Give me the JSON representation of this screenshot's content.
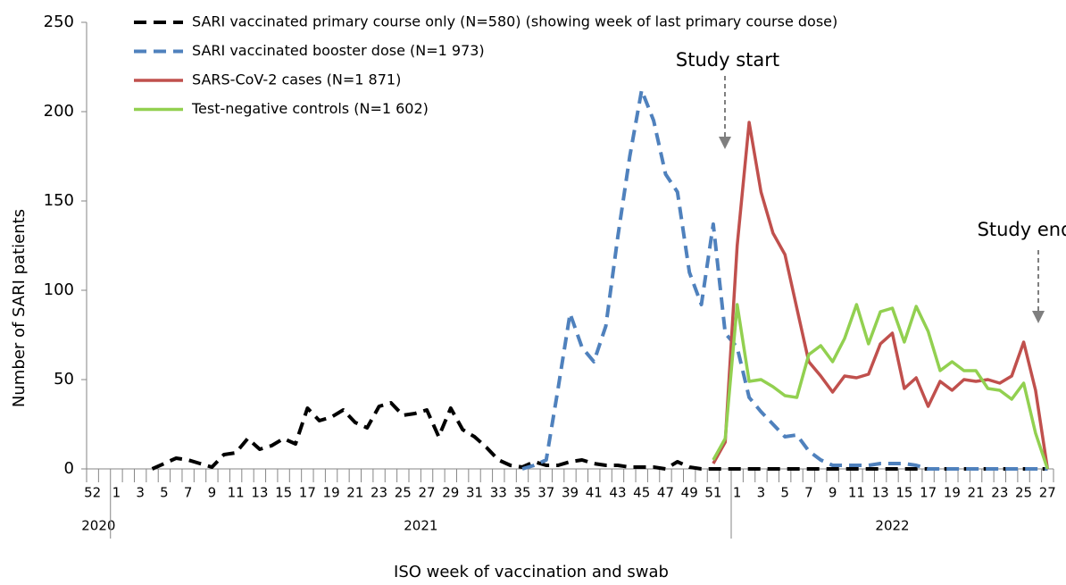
{
  "chart_data": {
    "type": "line",
    "y_label": "Number of SARI patients",
    "x_label": "ISO week of vaccination and swab",
    "categories": [
      "52",
      null,
      "1",
      null,
      "3",
      null,
      "5",
      null,
      "7",
      null,
      "9",
      null,
      "11",
      null,
      "13",
      null,
      "15",
      null,
      "17",
      null,
      "19",
      null,
      "21",
      null,
      "23",
      null,
      "25",
      null,
      "27",
      null,
      "29",
      null,
      "31",
      null,
      "33",
      null,
      "35",
      null,
      "37",
      null,
      "39",
      null,
      "41",
      null,
      "43",
      null,
      "45",
      null,
      "47",
      null,
      "49",
      null,
      "51",
      null,
      "1",
      null,
      "3",
      null,
      "5",
      null,
      "7",
      null,
      "9",
      null,
      "11",
      null,
      "13",
      null,
      "15",
      null,
      "17",
      null,
      "19",
      null,
      "21",
      null,
      "23",
      null,
      "25",
      null,
      "27"
    ],
    "year_groups": [
      {
        "label": "2020",
        "span": 2
      },
      {
        "label": "2021",
        "span": 52
      },
      {
        "label": "2022",
        "span": 27
      }
    ],
    "ylim": [
      0,
      250
    ],
    "yticks": [
      0,
      50,
      100,
      150,
      200,
      250
    ],
    "annotations": [
      {
        "text": "Study start"
      },
      {
        "text": "Study end"
      }
    ],
    "series": [
      {
        "name": "SARI vaccinated primary course only (N=580) (showing week of last primary course dose)",
        "color": "#000000",
        "dash": true,
        "values": [
          null,
          null,
          null,
          null,
          null,
          0,
          3,
          6,
          5,
          3,
          1,
          8,
          9,
          17,
          11,
          13,
          17,
          14,
          34,
          27,
          29,
          33,
          26,
          23,
          35,
          37,
          30,
          31,
          33,
          18,
          34,
          22,
          18,
          12,
          5,
          2,
          1,
          4,
          2,
          2,
          4,
          5,
          3,
          2,
          2,
          1,
          1,
          1,
          0,
          4,
          1,
          0,
          0,
          0,
          0,
          0,
          0,
          0,
          0,
          0,
          0,
          0,
          0,
          0,
          0,
          0,
          0,
          0,
          0,
          0,
          0,
          0,
          0,
          0,
          0,
          0,
          0,
          0,
          0,
          0,
          0
        ]
      },
      {
        "name": "SARI vaccinated booster dose (N=1 973)",
        "color": "#4f81bd",
        "dash": true,
        "values": [
          null,
          null,
          null,
          null,
          null,
          null,
          null,
          null,
          null,
          null,
          null,
          null,
          null,
          null,
          null,
          null,
          null,
          null,
          null,
          null,
          null,
          null,
          null,
          null,
          null,
          null,
          null,
          null,
          null,
          null,
          null,
          null,
          null,
          null,
          null,
          null,
          0,
          2,
          5,
          45,
          87,
          68,
          60,
          80,
          130,
          175,
          212,
          195,
          165,
          155,
          110,
          92,
          137,
          76,
          68,
          40,
          32,
          25,
          18,
          19,
          10,
          5,
          2,
          2,
          2,
          2,
          3,
          3,
          3,
          2,
          0,
          0,
          0,
          0,
          0,
          0,
          0,
          0,
          0,
          0,
          0
        ]
      },
      {
        "name": "SARS-CoV-2 cases (N=1 871)",
        "color": "#c0504d",
        "dash": false,
        "values": [
          null,
          null,
          null,
          null,
          null,
          null,
          null,
          null,
          null,
          null,
          null,
          null,
          null,
          null,
          null,
          null,
          null,
          null,
          null,
          null,
          null,
          null,
          null,
          null,
          null,
          null,
          null,
          null,
          null,
          null,
          null,
          null,
          null,
          null,
          null,
          null,
          null,
          null,
          null,
          null,
          null,
          null,
          null,
          null,
          null,
          null,
          null,
          null,
          null,
          null,
          null,
          null,
          3,
          15,
          125,
          194,
          155,
          132,
          120,
          90,
          60,
          52,
          43,
          52,
          51,
          53,
          70,
          76,
          45,
          51,
          35,
          49,
          44,
          50,
          49,
          50,
          48,
          52,
          71,
          44,
          0
        ]
      },
      {
        "name": "Test-negative controls (N=1 602)",
        "color": "#92d050",
        "dash": false,
        "values": [
          null,
          null,
          null,
          null,
          null,
          null,
          null,
          null,
          null,
          null,
          null,
          null,
          null,
          null,
          null,
          null,
          null,
          null,
          null,
          null,
          null,
          null,
          null,
          null,
          null,
          null,
          null,
          null,
          null,
          null,
          null,
          null,
          null,
          null,
          null,
          null,
          null,
          null,
          null,
          null,
          null,
          null,
          null,
          null,
          null,
          null,
          null,
          null,
          null,
          null,
          null,
          null,
          5,
          17,
          92,
          49,
          50,
          46,
          41,
          40,
          64,
          69,
          60,
          73,
          92,
          70,
          88,
          90,
          71,
          91,
          77,
          55,
          60,
          55,
          55,
          45,
          44,
          39,
          48,
          20,
          0
        ]
      }
    ]
  }
}
